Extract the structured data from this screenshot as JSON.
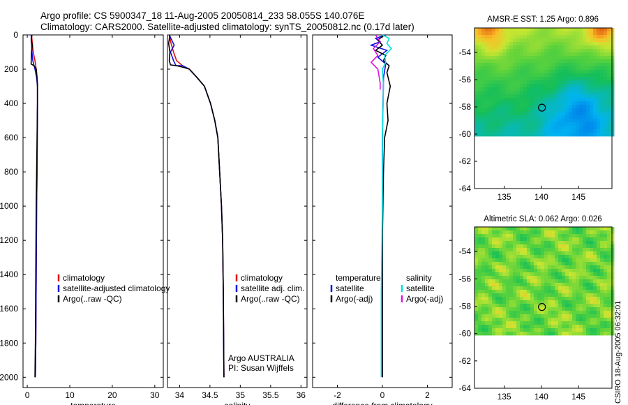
{
  "title_line1": "Argo profile: CS 5900347_18 11-Aug-2005 20050814_233 58.055S 140.076E",
  "title_line2": "Climatology: CARS2000. Satellite-adjusted climatology: synTS_20050812.nc (0.17d later)",
  "side_label": "CSIRO 18-Aug-2005 06:32:01",
  "colors": {
    "climatology": "#e01010",
    "satellite": "#1010e0",
    "argo": "#000000",
    "satellite_salinity": "#00e0e0",
    "argo_salinity": "#e010e0"
  },
  "chart_data": [
    {
      "type": "line",
      "name": "temperature",
      "xlabel": "temperature",
      "ylabel": "",
      "xlim": [
        -1,
        32
      ],
      "ylim": [
        2060,
        0
      ],
      "xticks": [
        0,
        10,
        20,
        30
      ],
      "yticks": [
        0,
        200,
        400,
        600,
        800,
        1000,
        1200,
        1400,
        1600,
        1800,
        2000
      ],
      "legend": [
        "climatology",
        "satellite-adjusted climatology",
        "Argo(..raw -QC)"
      ],
      "legend_position": "lower-middle",
      "series": [
        {
          "name": "climatology",
          "color_key": "climatology",
          "x": [
            1.0,
            1.2,
            1.4,
            1.8,
            2.1,
            2.3,
            2.4,
            2.4,
            2.35,
            2.3,
            2.2,
            2.1,
            2.0,
            1.9
          ],
          "y": [
            0,
            50,
            100,
            150,
            200,
            250,
            300,
            400,
            600,
            800,
            1000,
            1400,
            1800,
            2000
          ]
        },
        {
          "name": "satellite-adjusted climatology",
          "color_key": "satellite",
          "x": [
            0.9,
            1.0,
            1.1,
            1.3,
            1.8,
            2.2,
            2.4,
            2.4,
            2.35,
            2.3,
            2.2,
            2.1,
            2.0,
            1.9
          ],
          "y": [
            0,
            50,
            100,
            150,
            200,
            250,
            300,
            400,
            600,
            800,
            1000,
            1400,
            1800,
            2000
          ]
        },
        {
          "name": "Argo(..raw -QC)",
          "color_key": "argo",
          "x": [
            1.1,
            0.9,
            1.2,
            1.0,
            0.9,
            1.6,
            2.1,
            2.3,
            2.4,
            2.4,
            2.3,
            2.2,
            2.1,
            2.0,
            1.9,
            1.8
          ],
          "y": [
            0,
            30,
            60,
            100,
            170,
            180,
            200,
            250,
            300,
            400,
            600,
            800,
            1000,
            1400,
            1800,
            2000
          ]
        }
      ]
    },
    {
      "type": "line",
      "name": "salinity",
      "xlabel": "salinity",
      "ylabel": "",
      "xlim": [
        33.8,
        36.1
      ],
      "ylim": [
        2060,
        0
      ],
      "xticks": [
        34,
        34.5,
        35,
        35.5,
        36
      ],
      "legend": [
        "climatology",
        "satellite adj. clim.",
        "Argo(..raw -QC)"
      ],
      "legend_position": "lower-right",
      "annotations": [
        "Argo AUSTRALIA",
        "PI: Susan Wijffels"
      ],
      "series": [
        {
          "name": "climatology",
          "color_key": "climatology",
          "x": [
            33.83,
            33.86,
            33.9,
            33.95,
            34.05,
            34.16,
            34.29,
            34.41,
            34.51,
            34.58,
            34.63,
            34.66,
            34.69,
            34.71,
            34.72,
            34.73
          ],
          "y": [
            0,
            50,
            100,
            150,
            180,
            200,
            250,
            300,
            400,
            500,
            600,
            800,
            1000,
            1200,
            1500,
            2000
          ]
        },
        {
          "name": "satellite adj. clim.",
          "color_key": "satellite",
          "x": [
            33.83,
            33.91,
            33.85,
            33.9,
            33.94,
            34.05,
            34.16,
            34.29,
            34.41,
            34.51,
            34.58,
            34.63,
            34.66,
            34.69,
            34.71,
            34.72,
            34.73
          ],
          "y": [
            0,
            60,
            100,
            150,
            180,
            180,
            200,
            250,
            300,
            400,
            500,
            600,
            800,
            1000,
            1200,
            1500,
            2000
          ]
        },
        {
          "name": "Argo(..raw -QC)",
          "color_key": "argo",
          "x": [
            33.84,
            33.82,
            33.84,
            33.83,
            33.85,
            33.95,
            34.07,
            34.16,
            34.29,
            34.41,
            34.51,
            34.58,
            34.63,
            34.66,
            34.69,
            34.71,
            34.72,
            34.73
          ],
          "y": [
            0,
            50,
            100,
            150,
            175,
            180,
            190,
            200,
            250,
            300,
            400,
            500,
            600,
            800,
            1000,
            1200,
            1500,
            2000
          ]
        }
      ]
    },
    {
      "type": "line",
      "name": "difference",
      "xlabel": "difference from climatology",
      "ylabel": "",
      "xlim": [
        -3.1,
        3.1
      ],
      "ylim": [
        2060,
        0
      ],
      "xticks": [
        -2,
        0,
        2
      ],
      "legend_groups": [
        {
          "title": "temperature",
          "items": [
            "satellite",
            "Argo(-adj)"
          ]
        },
        {
          "title": "salinity",
          "items": [
            "satellite",
            "Argo(-adj)"
          ]
        }
      ],
      "legend_position": "lower",
      "series": [
        {
          "name": "temperature satellite",
          "color_key": "satellite",
          "x": [
            0.15,
            -0.3,
            -0.1,
            -0.5,
            0.2,
            -0.2,
            0.15,
            0.05,
            0.0,
            0.0,
            0.0,
            0.0
          ],
          "y": [
            0,
            20,
            40,
            60,
            90,
            130,
            170,
            250,
            600,
            1000,
            1500,
            2000
          ]
        },
        {
          "name": "temperature Argo(-adj)",
          "color_key": "argo",
          "x": [
            0.1,
            -0.2,
            0.0,
            -0.3,
            0.15,
            0.05,
            0.3,
            0.2,
            0.35,
            0.2,
            0.25,
            0.1,
            0.05,
            0.0,
            0.0,
            0.0
          ],
          "y": [
            0,
            30,
            60,
            90,
            120,
            150,
            180,
            220,
            300,
            400,
            500,
            600,
            800,
            1200,
            1600,
            2000
          ]
        },
        {
          "name": "salinity satellite",
          "color_key": "satellite_salinity",
          "x": [
            0.0,
            0.3,
            0.2,
            0.4,
            0.1,
            0.15,
            0.0,
            0.05,
            0.0,
            0.0,
            -0.05,
            -0.05
          ],
          "y": [
            0,
            20,
            50,
            80,
            120,
            160,
            200,
            300,
            600,
            1000,
            1500,
            2000
          ]
        },
        {
          "name": "salinity Argo(-adj)",
          "color_key": "argo_salinity",
          "x": [
            -0.3,
            -0.1,
            -0.4,
            -0.2,
            -0.5,
            -0.2,
            -0.1,
            -0.1
          ],
          "y": [
            0,
            40,
            80,
            120,
            160,
            200,
            280,
            320
          ]
        }
      ]
    },
    {
      "type": "heatmap",
      "name": "sst_map",
      "title": "AMSR-E SST: 1.25 Argo: 0.896",
      "xlim": [
        131,
        149.5
      ],
      "ylim": [
        -64,
        -52.2
      ],
      "xticks": [
        135,
        140,
        145
      ],
      "yticks": [
        -54,
        -56,
        -58,
        -60,
        -62,
        -64
      ],
      "data_lat_range": [
        -60,
        -52.2
      ],
      "marker": {
        "lon": 140.076,
        "lat": -58.055
      }
    },
    {
      "type": "heatmap",
      "name": "sla_map",
      "title": "Altimetric SLA: 0.062 Argo: 0.026",
      "xlim": [
        131,
        149.5
      ],
      "ylim": [
        -64,
        -52.2
      ],
      "xticks": [
        135,
        140,
        145
      ],
      "yticks": [
        -54,
        -56,
        -58,
        -60,
        -62,
        -64
      ],
      "data_lat_range": [
        -60,
        -52.2
      ],
      "marker": {
        "lon": 140.076,
        "lat": -58.055
      }
    }
  ]
}
